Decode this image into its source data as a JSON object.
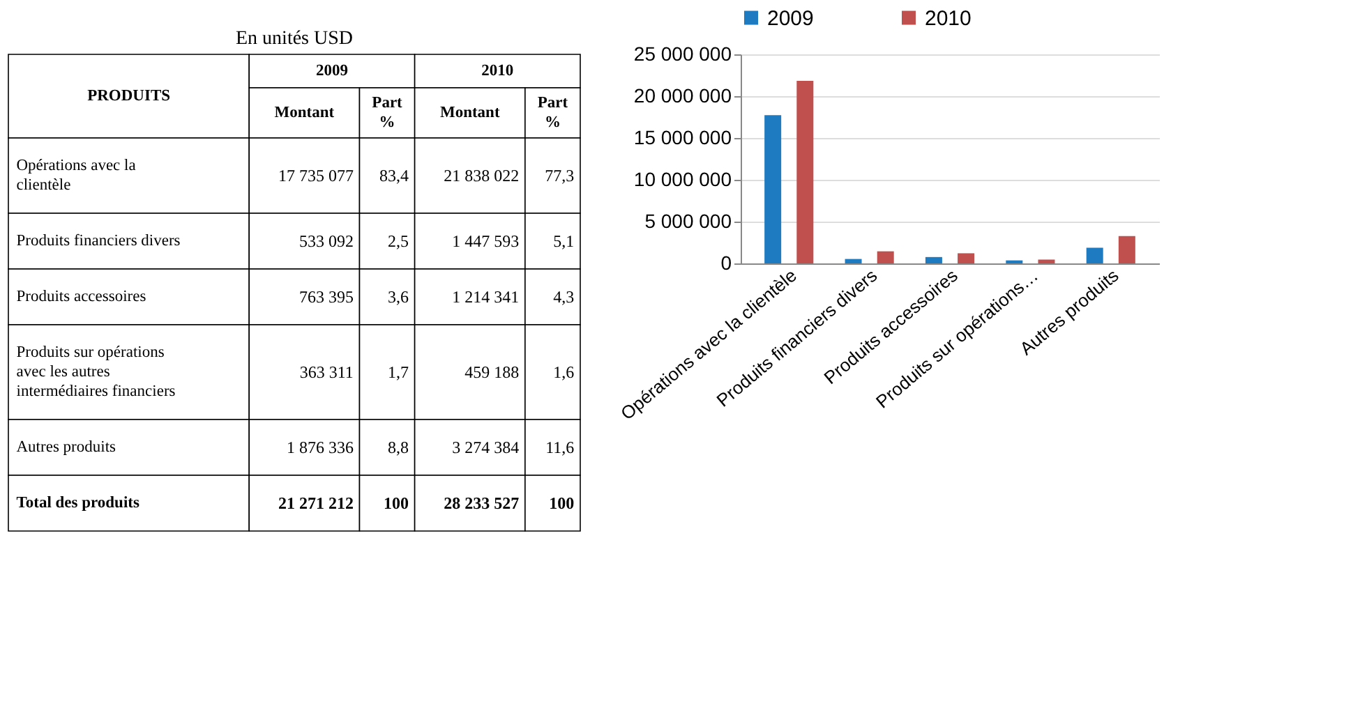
{
  "chart_data": [
    {
      "type": "other",
      "title": "En unités USD",
      "ylabel": "PRODUITS",
      "annotations": [
        "2009",
        "2010"
      ],
      "categories": [
        "Montant",
        "Part %",
        "Montant",
        "Part %"
      ],
      "y_categories": [
        "Opérations avec la clientèle",
        "Produits financiers divers",
        "Produits accessoires",
        "Produits sur opérations avec les autres intermédiaires financiers",
        "Autres produits",
        "Total des produits"
      ],
      "cell_labels": [
        [
          "17 735 077",
          "83,4",
          "21 838 022",
          "77,3"
        ],
        [
          "533 092",
          "2,5",
          "1 447 593",
          "5,1"
        ],
        [
          "763 395",
          "3,6",
          "1 214 341",
          "4,3"
        ],
        [
          "363 311",
          "1,7",
          "459 188",
          "1,6"
        ],
        [
          "1 876 336",
          "8,8",
          "3 274 384",
          "11,6"
        ],
        [
          "21 271 212",
          "100",
          "28 233 527",
          "100"
        ]
      ]
    },
    {
      "type": "bar",
      "categories": [
        "Opérations avec la clientèle",
        "Produits financiers divers",
        "Produits accessoires",
        "Produits sur opérations…",
        "Autres produits"
      ],
      "series": [
        {
          "name": "2009",
          "color": "#1f7bc1",
          "values": [
            17735077,
            533092,
            763395,
            363311,
            1876336
          ]
        },
        {
          "name": "2010",
          "color": "#c0504d",
          "values": [
            21838022,
            1447593,
            1214341,
            459188,
            3274384
          ]
        }
      ],
      "ylim": [
        0,
        25000000
      ],
      "yticks": [
        {
          "value": 0,
          "label": "0"
        },
        {
          "value": 5000000,
          "label": "5 000 000"
        },
        {
          "value": 10000000,
          "label": "10 000 000"
        },
        {
          "value": 15000000,
          "label": "15 000 000"
        },
        {
          "value": 20000000,
          "label": "20 000 000"
        },
        {
          "value": 25000000,
          "label": "25 000 000"
        }
      ],
      "grid": "y",
      "legend": "top"
    }
  ]
}
